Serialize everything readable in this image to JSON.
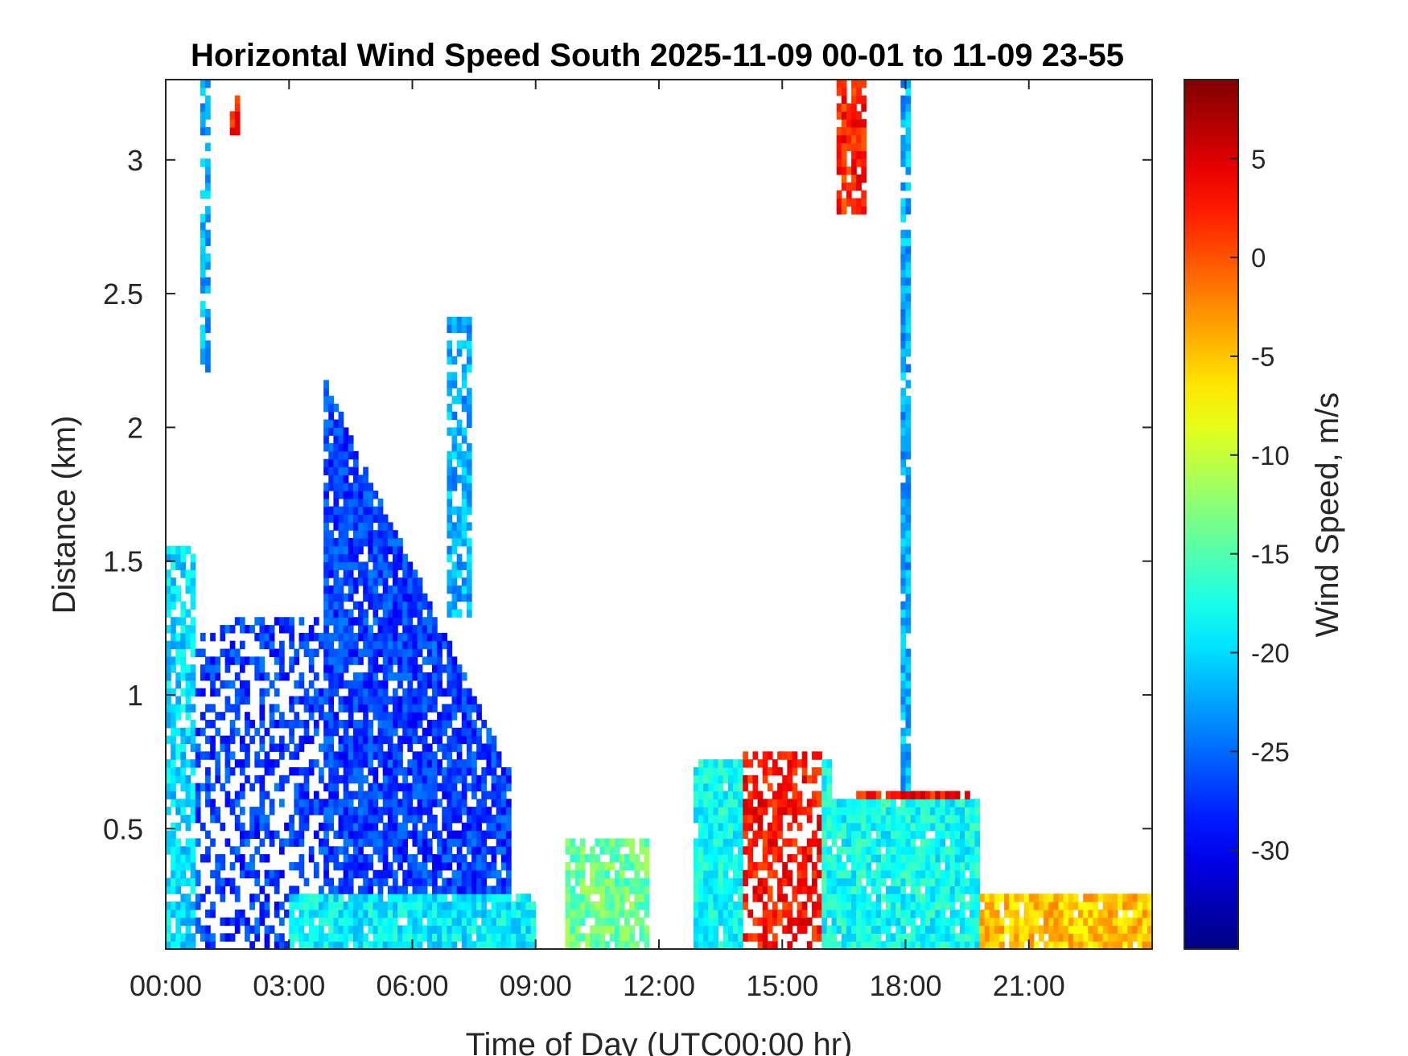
{
  "chart_data": {
    "type": "heatmap",
    "title": "Horizontal Wind Speed South 2025-11-09 00-01 to 11-09 23-55",
    "xlabel": "Time of Day (UTC00:00 hr)",
    "ylabel": "Distance (km)",
    "colorbar_label": "Wind Speed, m/s",
    "colormap": "jet",
    "xlim_hours": [
      0,
      24
    ],
    "ylim_km": [
      0.05,
      3.3
    ],
    "clim": [
      -35,
      9
    ],
    "x_ticks": [
      {
        "value": 0,
        "label": "00:00"
      },
      {
        "value": 3,
        "label": "03:00"
      },
      {
        "value": 6,
        "label": "06:00"
      },
      {
        "value": 9,
        "label": "09:00"
      },
      {
        "value": 12,
        "label": "12:00"
      },
      {
        "value": 15,
        "label": "15:00"
      },
      {
        "value": 18,
        "label": "18:00"
      },
      {
        "value": 21,
        "label": "21:00"
      }
    ],
    "y_ticks": [
      {
        "value": 0.5,
        "label": "0.5"
      },
      {
        "value": 1,
        "label": "1"
      },
      {
        "value": 1.5,
        "label": "1.5"
      },
      {
        "value": 2,
        "label": "2"
      },
      {
        "value": 2.5,
        "label": "2.5"
      },
      {
        "value": 3,
        "label": "3"
      }
    ],
    "colorbar_ticks": [
      {
        "value": 5,
        "label": "5"
      },
      {
        "value": 0,
        "label": "0"
      },
      {
        "value": -5,
        "label": "-5"
      },
      {
        "value": -10,
        "label": "-10"
      },
      {
        "value": -15,
        "label": "-15"
      },
      {
        "value": -20,
        "label": "-20"
      },
      {
        "value": -25,
        "label": "-25"
      },
      {
        "value": -30,
        "label": "-30"
      }
    ],
    "regions": [
      {
        "name": "early-column",
        "t": [
          0.0,
          0.7
        ],
        "h_top": 1.55,
        "speed": -20,
        "density": 0.75
      },
      {
        "name": "early-high-streak",
        "t": [
          0.85,
          1.05
        ],
        "h_range": [
          2.2,
          3.3
        ],
        "speed": -22,
        "density": 0.6
      },
      {
        "name": "early-high-red",
        "t": [
          1.55,
          1.75
        ],
        "h_range": [
          3.1,
          3.25
        ],
        "speed": 3,
        "density": 0.9
      },
      {
        "name": "scattered-low",
        "t": [
          0.7,
          3.8
        ],
        "h_top": 1.3,
        "speed": -27,
        "density": 0.45
      },
      {
        "name": "morning-plume",
        "t": [
          3.8,
          8.4
        ],
        "h_top_start": 2.2,
        "h_top_end": 0.7,
        "speed": -27,
        "density": 0.85
      },
      {
        "name": "morning-surface",
        "t": [
          3.0,
          9.0
        ],
        "h_range": [
          0.05,
          0.25
        ],
        "speed": -19,
        "density": 0.95
      },
      {
        "name": "virga-streak",
        "t": [
          6.8,
          7.4
        ],
        "h_range": [
          1.3,
          2.4
        ],
        "speed": -22,
        "density": 0.7
      },
      {
        "name": "midday-low",
        "t": [
          9.7,
          11.7
        ],
        "h_top": 0.45,
        "speed": -14,
        "density": 0.8
      },
      {
        "name": "gap",
        "t": [
          11.7,
          12.8
        ],
        "h_top": 0.05,
        "speed": 0,
        "density": 0
      },
      {
        "name": "afternoon-low",
        "t": [
          12.8,
          16.2
        ],
        "h_top": 0.75,
        "speed": -18,
        "density": 0.95
      },
      {
        "name": "afternoon-shear",
        "t": [
          14.0,
          16.0
        ],
        "h_range": [
          0.05,
          0.8
        ],
        "speed": 3,
        "density": 0.6
      },
      {
        "name": "descending-band",
        "t": [
          16.3,
          17.0
        ],
        "h_range": [
          2.8,
          3.3
        ],
        "speed": 2,
        "density": 0.85
      },
      {
        "name": "thin-column-18h",
        "t": [
          17.9,
          18.1
        ],
        "h_range": [
          0.5,
          3.3
        ],
        "speed": -22,
        "density": 0.9
      },
      {
        "name": "evening-jet",
        "t": [
          16.8,
          19.6
        ],
        "h_range": [
          0.45,
          0.65
        ],
        "speed": 3,
        "density": 0.85
      },
      {
        "name": "evening-low",
        "t": [
          16.2,
          19.8
        ],
        "h_top": 0.6,
        "speed": -18,
        "density": 0.95
      },
      {
        "name": "night-low",
        "t": [
          19.8,
          24.0
        ],
        "h_top": 0.25,
        "speed": -5,
        "density": 0.9
      }
    ]
  }
}
